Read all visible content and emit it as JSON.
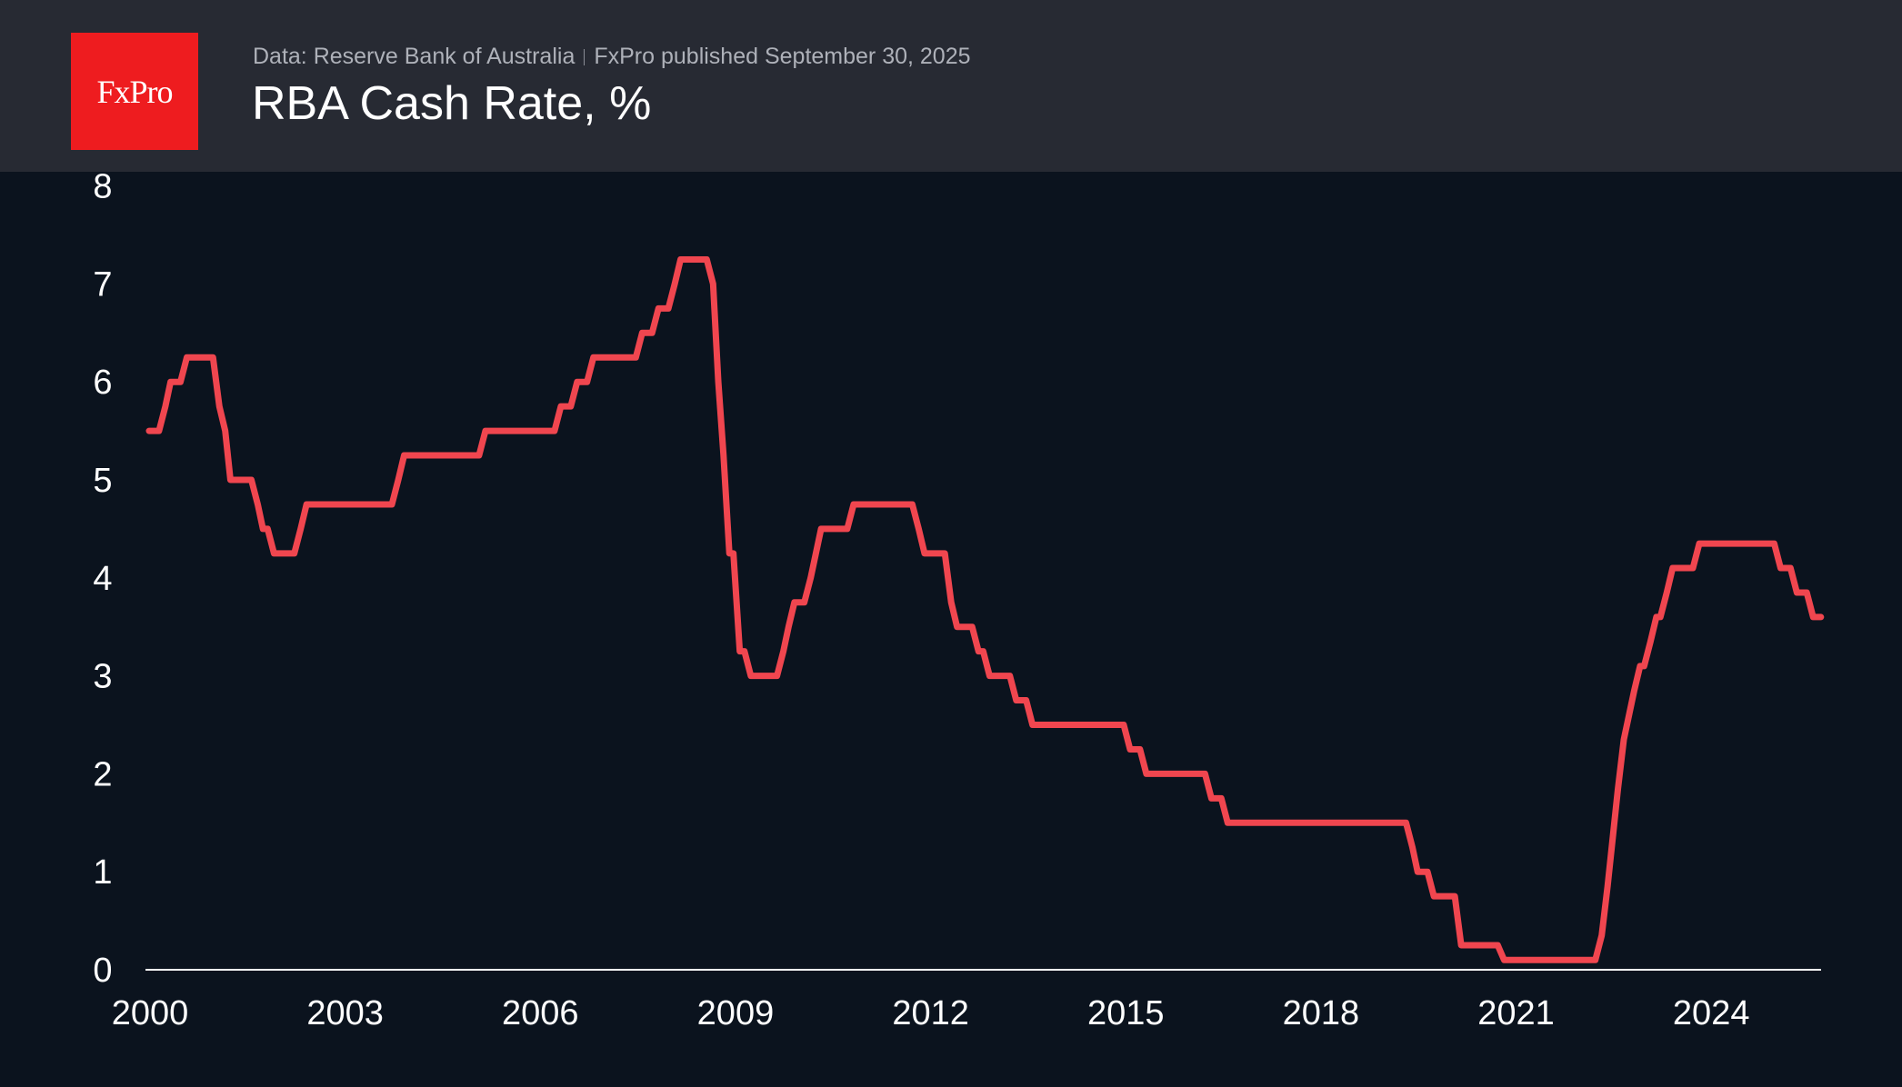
{
  "header": {
    "logo_text": "FxPro",
    "source": "Data: Reserve Bank of Australia",
    "published": "FxPro published September 30, 2025",
    "title": "RBA Cash Rate, %"
  },
  "chart_data": {
    "type": "line",
    "title": "RBA Cash Rate, %",
    "xlabel": "",
    "ylabel": "",
    "xlim": [
      2000,
      2025.7
    ],
    "ylim": [
      0,
      8
    ],
    "yticks": [
      "0",
      "1",
      "2",
      "3",
      "4",
      "5",
      "6",
      "7",
      "8"
    ],
    "xticks": [
      "2000",
      "2003",
      "2006",
      "2009",
      "2012",
      "2015",
      "2018",
      "2021",
      "2024"
    ],
    "grid": false,
    "line_color": "#f0464f",
    "series": [
      {
        "name": "RBA Cash Rate",
        "x": [
          2000.0,
          2000.25,
          2000.33,
          2000.58,
          2001.08,
          2001.17,
          2001.25,
          2001.67,
          2001.75,
          2001.92,
          2002.33,
          2002.42,
          2003.83,
          2003.92,
          2005.17,
          2006.33,
          2006.58,
          2006.83,
          2007.58,
          2007.83,
          2008.08,
          2008.17,
          2008.67,
          2008.75,
          2008.83,
          2008.92,
          2009.08,
          2009.25,
          2009.75,
          2009.83,
          2009.92,
          2010.17,
          2010.25,
          2010.33,
          2010.83,
          2011.83,
          2011.92,
          2012.33,
          2012.42,
          2012.75,
          2012.92,
          2013.33,
          2013.58,
          2015.08,
          2015.33,
          2016.33,
          2016.58,
          2019.42,
          2019.5,
          2019.75,
          2020.17,
          2020.83,
          2022.33,
          2022.42,
          2022.5,
          2022.58,
          2022.67,
          2022.75,
          2022.83,
          2022.92,
          2023.08,
          2023.17,
          2023.33,
          2023.42,
          2023.83,
          2025.08,
          2025.33,
          2025.58,
          2025.7
        ],
        "y": [
          5.5,
          5.75,
          6.0,
          6.25,
          5.75,
          5.5,
          5.0,
          4.75,
          4.5,
          4.25,
          4.5,
          4.75,
          5.0,
          5.25,
          5.5,
          5.75,
          6.0,
          6.25,
          6.5,
          6.75,
          7.0,
          7.25,
          7.0,
          6.0,
          5.25,
          4.25,
          3.25,
          3.0,
          3.25,
          3.5,
          3.75,
          4.0,
          4.25,
          4.5,
          4.75,
          4.5,
          4.25,
          3.75,
          3.5,
          3.25,
          3.0,
          2.75,
          2.5,
          2.25,
          2.0,
          1.75,
          1.5,
          1.25,
          1.0,
          0.75,
          0.25,
          0.1,
          0.35,
          0.85,
          1.35,
          1.85,
          2.35,
          2.6,
          2.85,
          3.1,
          3.35,
          3.6,
          3.85,
          4.1,
          4.35,
          4.1,
          3.85,
          3.6,
          3.6
        ]
      }
    ]
  }
}
